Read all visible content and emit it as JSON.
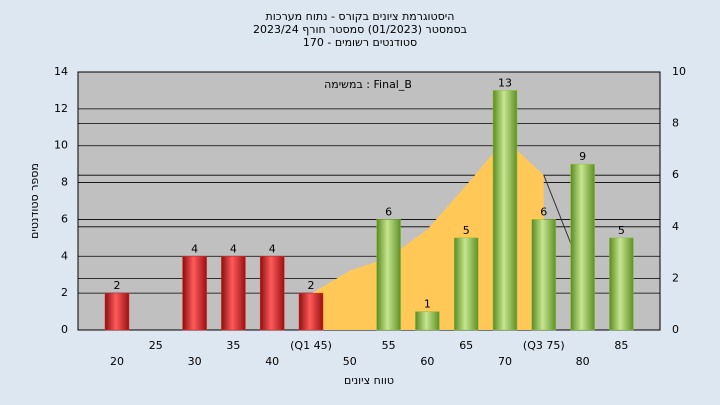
{
  "chart_data": {
    "type": "bar",
    "title": [
      "היסטוגרמת ציונים בקורס - נתוח מערכות",
      "בסמסטר  (01/2023)  סמסטר חורף  2023/24",
      "סטודנטים רשומים - 170"
    ],
    "annotation": "במשימה : Final_B",
    "x_label": "טווח ציונים",
    "y_label": "מספר סטודנטים",
    "categories": [
      "20",
      "25",
      "30",
      "35",
      "40",
      "(Q1 45)",
      "50",
      "55",
      "60",
      "65",
      "70",
      "(Q3 75)",
      "80",
      "85"
    ],
    "series": [
      {
        "type": "area",
        "axis": "y2",
        "color": "#ffc857",
        "values": [
          null,
          null,
          null,
          null,
          null,
          1.4,
          2.3,
          2.8,
          3.9,
          5.6,
          7.4,
          6.0,
          null,
          null
        ]
      },
      {
        "type": "line",
        "axis": "y2",
        "color": "#333333",
        "values": [
          null,
          null,
          null,
          null,
          null,
          null,
          null,
          null,
          null,
          null,
          null,
          6.0,
          2.2,
          null
        ]
      },
      {
        "type": "bar",
        "values": [
          2,
          0,
          4,
          4,
          4,
          2,
          0,
          6,
          1,
          5,
          13,
          6,
          9,
          5
        ],
        "colors": [
          "#e02a2a",
          "#e02a2a",
          "#e02a2a",
          "#e02a2a",
          "#e02a2a",
          "#e02a2a",
          "#8cc43c",
          "#8cc43c",
          "#8cc43c",
          "#8cc43c",
          "#8cc43c",
          "#8cc43c",
          "#8cc43c",
          "#8cc43c"
        ]
      }
    ],
    "ylim": [
      0,
      14
    ],
    "yticks": [
      0,
      2,
      4,
      6,
      8,
      10,
      12,
      14
    ],
    "y2lim": [
      0,
      10
    ],
    "y2ticks": [
      0,
      2,
      4,
      6,
      8,
      10
    ],
    "grid": true
  }
}
